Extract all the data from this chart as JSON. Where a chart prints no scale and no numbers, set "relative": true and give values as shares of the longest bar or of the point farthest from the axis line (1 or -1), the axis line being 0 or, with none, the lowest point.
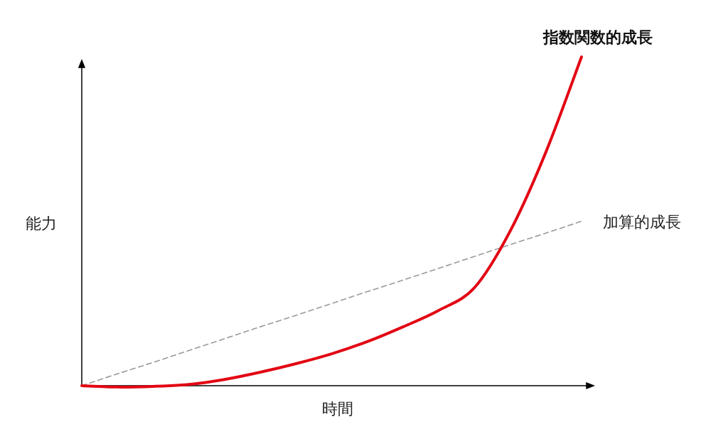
{
  "chart_data": {
    "type": "line",
    "relative": true,
    "xlabel": "時間",
    "ylabel": "能力",
    "legend": false,
    "grid": false,
    "categories": [
      null,
      null,
      null,
      null,
      null,
      null,
      null,
      null,
      null,
      null,
      null,
      null,
      null,
      null,
      null
    ],
    "series": [
      {
        "name": "指数関数的成長",
        "color": "#e30613",
        "values": [
          0,
          -0.004,
          -0.002,
          0.004,
          0.019,
          0.041,
          0.067,
          0.097,
          0.134,
          0.179,
          0.229,
          0.298,
          0.47,
          0.71,
          1
        ]
      },
      {
        "name": "加算的成長",
        "color": "#9a9a9a",
        "line_style": "dashed",
        "values": [
          0,
          0.036,
          0.071,
          0.107,
          0.143,
          0.179,
          0.214,
          0.25,
          0.286,
          0.321,
          0.357,
          0.393,
          0.429,
          0.464,
          0.5
        ]
      }
    ]
  }
}
